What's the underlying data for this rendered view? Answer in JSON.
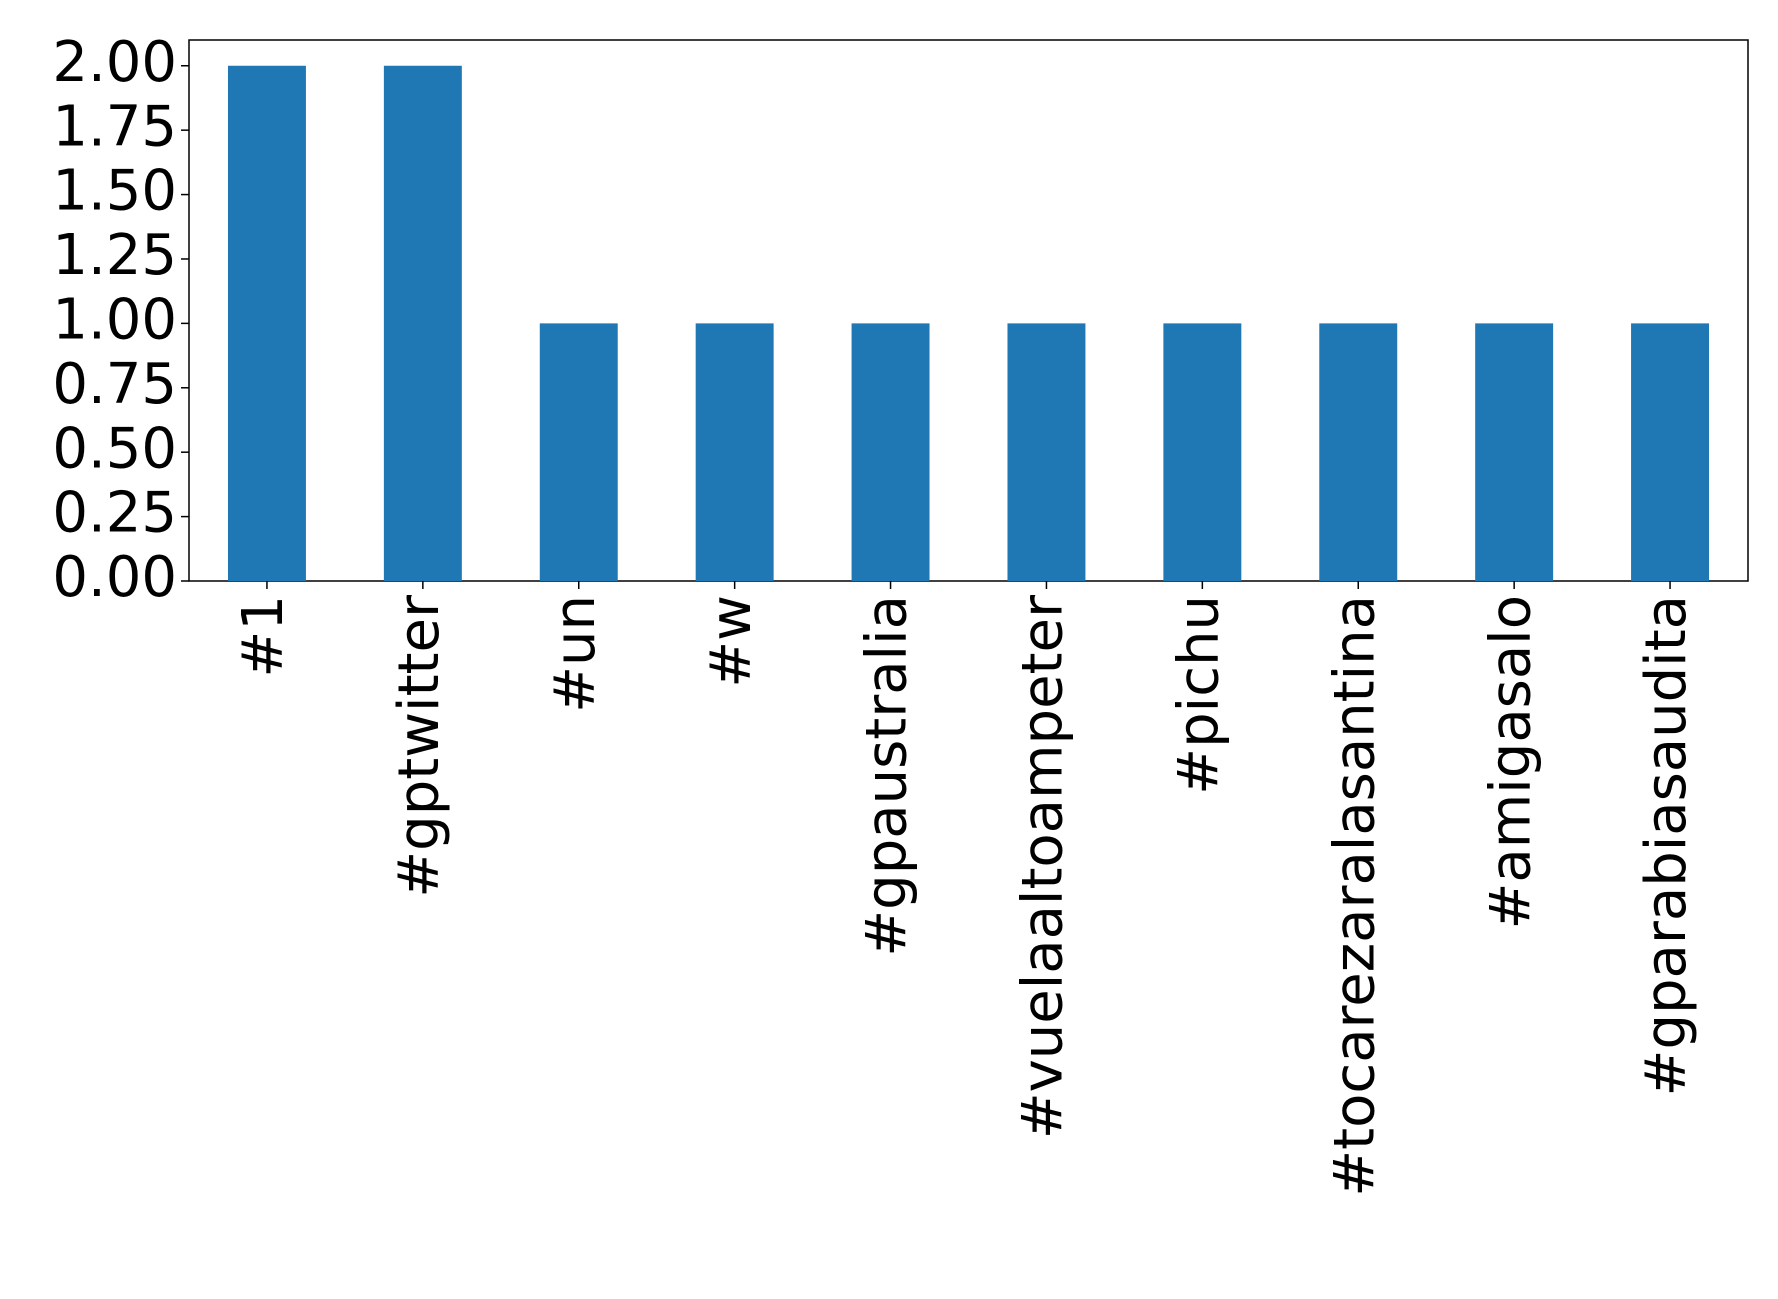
{
  "chart_data": {
    "type": "bar",
    "categories": [
      "#1",
      "#gptwitter",
      "#un",
      "#w",
      "#gpaustralia",
      "#vuelaaltoampeter",
      "#pichu",
      "#tocarezaralasantina",
      "#amigasalo",
      "#gparabiasaudita"
    ],
    "values": [
      2,
      2,
      1,
      1,
      1,
      1,
      1,
      1,
      1,
      1
    ],
    "color": "#1f77b4",
    "ylim": [
      0,
      2.1
    ],
    "yticks": [
      {
        "value": 0,
        "label": "0.00"
      },
      {
        "value": 0.25,
        "label": "0.25"
      },
      {
        "value": 0.5,
        "label": "0.50"
      },
      {
        "value": 0.75,
        "label": "0.75"
      },
      {
        "value": 1,
        "label": "1.00"
      },
      {
        "value": 1.25,
        "label": "1.25"
      },
      {
        "value": 1.5,
        "label": "1.50"
      },
      {
        "value": 1.75,
        "label": "1.75"
      },
      {
        "value": 2,
        "label": "2.00"
      }
    ],
    "grid": false
  }
}
